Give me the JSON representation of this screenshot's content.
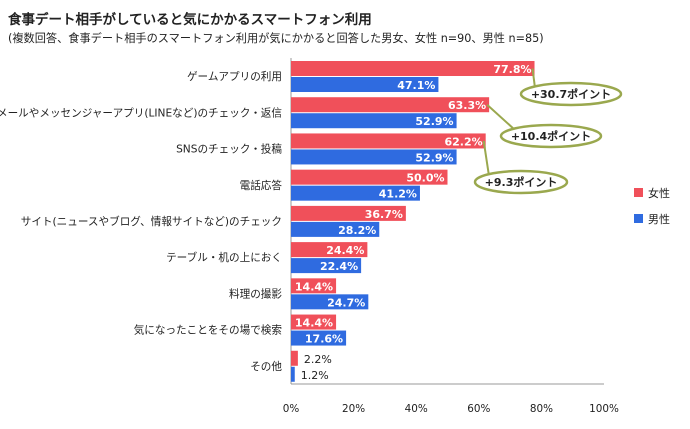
{
  "title": "食事デート相手がしていると気にかかるスマートフォン利用",
  "subtitle": "(複数回答、食事デート相手のスマートフォン利用が気にかかると回答した男女、女性 n=90、男性 n=85)",
  "colors": {
    "female": "#f0505a",
    "male": "#2f6be0",
    "callout_border": "#9aa84e",
    "axis": "#999999"
  },
  "chart_data": {
    "type": "bar",
    "orientation": "horizontal",
    "categories": [
      "ゲームアプリの利用",
      "メールやメッセンジャーアプリ(LINEなど)のチェック・返信",
      "SNSのチェック・投稿",
      "電話応答",
      "サイト(ニュースやブログ、情報サイトなど)のチェック",
      "テーブル・机の上におく",
      "料理の撮影",
      "気になったことをその場で検索",
      "その他"
    ],
    "series": [
      {
        "name": "女性",
        "values": [
          77.8,
          63.3,
          62.2,
          50.0,
          36.7,
          24.4,
          14.4,
          14.4,
          2.2
        ],
        "labels": [
          "77.8%",
          "63.3%",
          "62.2%",
          "50.0%",
          "36.7%",
          "24.4%",
          "14.4%",
          "14.4%",
          "2.2%"
        ]
      },
      {
        "name": "男性",
        "values": [
          47.1,
          52.9,
          52.9,
          41.2,
          28.2,
          22.4,
          24.7,
          17.6,
          1.2
        ],
        "labels": [
          "47.1%",
          "52.9%",
          "52.9%",
          "41.2%",
          "28.2%",
          "22.4%",
          "24.7%",
          "17.6%",
          "1.2%"
        ]
      }
    ],
    "xlim": [
      0,
      100
    ],
    "x_ticks": [
      "0%",
      "20%",
      "40%",
      "60%",
      "80%",
      "100%"
    ],
    "legend_position": "right",
    "annotations": [
      {
        "text": "+30.7ポイント",
        "category_index": 0
      },
      {
        "text": "+10.4ポイント",
        "category_index": 1
      },
      {
        "text": "+9.3ポイント",
        "category_index": 2
      }
    ]
  }
}
